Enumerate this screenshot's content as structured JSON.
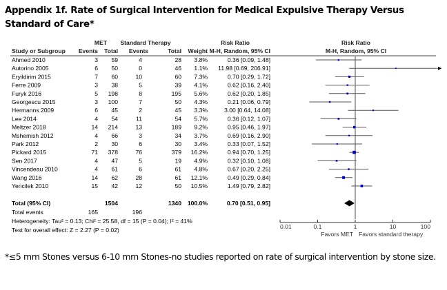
{
  "title": "Appendix 1f. Rate of Surgical Intervention for Medical Expulsive Therapy Versus Standard of Care*",
  "footnote": "*≤5 mm Stones versus 6-10 mm Stones-no studies reported on rate of surgical intervention by stone size.",
  "chart_data": {
    "type": "forest",
    "headers": {
      "group1": "MET",
      "group2": "Standard Therapy",
      "rr_group": "Risk Ratio",
      "study": "Study or Subgroup",
      "events": "Events",
      "total": "Total",
      "weight": "Weight",
      "method": "M-H, Random, 95% CI",
      "plot_title": "Risk Ratio",
      "plot_method": "M-H, Random, 95% CI"
    },
    "studies": [
      {
        "name": "Ahmed 2010",
        "e1": "3",
        "n1": "59",
        "e2": "4",
        "n2": "28",
        "weight": "3.8%",
        "rr_text": "0.36 [0.09, 1.48]",
        "rr": 0.36,
        "lo": 0.09,
        "hi": 1.48
      },
      {
        "name": "Autorino 2005",
        "e1": "6",
        "n1": "50",
        "e2": "0",
        "n2": "46",
        "weight": "1.1%",
        "rr_text": "11.98 [0.69, 206.91]",
        "rr": 11.98,
        "lo": 0.69,
        "hi": 206.91
      },
      {
        "name": "Eryildirim 2015",
        "e1": "7",
        "n1": "60",
        "e2": "10",
        "n2": "60",
        "weight": "7.3%",
        "rr_text": "0.70 [0.29, 1.72]",
        "rr": 0.7,
        "lo": 0.29,
        "hi": 1.72
      },
      {
        "name": "Ferre 2009",
        "e1": "3",
        "n1": "38",
        "e2": "5",
        "n2": "39",
        "weight": "4.1%",
        "rr_text": "0.62 [0.16, 2.40]",
        "rr": 0.62,
        "lo": 0.16,
        "hi": 2.4
      },
      {
        "name": "Furyk 2016",
        "e1": "5",
        "n1": "198",
        "e2": "8",
        "n2": "195",
        "weight": "5.6%",
        "rr_text": "0.62 [0.20, 1.85]",
        "rr": 0.62,
        "lo": 0.2,
        "hi": 1.85
      },
      {
        "name": "Georgescu 2015",
        "e1": "3",
        "n1": "100",
        "e2": "7",
        "n2": "50",
        "weight": "4.3%",
        "rr_text": "0.21 [0.06, 0.79]",
        "rr": 0.21,
        "lo": 0.06,
        "hi": 0.79
      },
      {
        "name": "Hermanns 2009",
        "e1": "6",
        "n1": "45",
        "e2": "2",
        "n2": "45",
        "weight": "3.3%",
        "rr_text": "3.00 [0.64, 14.08]",
        "rr": 3.0,
        "lo": 0.64,
        "hi": 14.08
      },
      {
        "name": "Lee 2014",
        "e1": "4",
        "n1": "54",
        "e2": "11",
        "n2": "54",
        "weight": "5.7%",
        "rr_text": "0.36 [0.12, 1.07]",
        "rr": 0.36,
        "lo": 0.12,
        "hi": 1.07
      },
      {
        "name": "Meltzer 2018",
        "e1": "14",
        "n1": "214",
        "e2": "13",
        "n2": "189",
        "weight": "9.2%",
        "rr_text": "0.95 [0.46, 1.97]",
        "rr": 0.95,
        "lo": 0.46,
        "hi": 1.97
      },
      {
        "name": "Mshemish 2012",
        "e1": "4",
        "n1": "66",
        "e2": "3",
        "n2": "34",
        "weight": "3.7%",
        "rr_text": "0.69 [0.16, 2.90]",
        "rr": 0.69,
        "lo": 0.16,
        "hi": 2.9
      },
      {
        "name": "Park 2012",
        "e1": "2",
        "n1": "30",
        "e2": "6",
        "n2": "30",
        "weight": "3.4%",
        "rr_text": "0.33 [0.07, 1.52]",
        "rr": 0.33,
        "lo": 0.07,
        "hi": 1.52
      },
      {
        "name": "Pickard 2015",
        "e1": "71",
        "n1": "378",
        "e2": "76",
        "n2": "379",
        "weight": "16.2%",
        "rr_text": "0.94 [0.70, 1.25]",
        "rr": 0.94,
        "lo": 0.7,
        "hi": 1.25
      },
      {
        "name": "Sen 2017",
        "e1": "4",
        "n1": "47",
        "e2": "5",
        "n2": "19",
        "weight": "4.9%",
        "rr_text": "0.32 [0.10, 1.08]",
        "rr": 0.32,
        "lo": 0.1,
        "hi": 1.08
      },
      {
        "name": "Vincendeau 2010",
        "e1": "4",
        "n1": "61",
        "e2": "6",
        "n2": "61",
        "weight": "4.8%",
        "rr_text": "0.67 [0.20, 2.25]",
        "rr": 0.67,
        "lo": 0.2,
        "hi": 2.25
      },
      {
        "name": "Wang 2016",
        "e1": "14",
        "n1": "62",
        "e2": "28",
        "n2": "61",
        "weight": "12.1%",
        "rr_text": "0.49 [0.29, 0.84]",
        "rr": 0.49,
        "lo": 0.29,
        "hi": 0.84
      },
      {
        "name": "Yencilek 2010",
        "e1": "15",
        "n1": "42",
        "e2": "12",
        "n2": "50",
        "weight": "10.5%",
        "rr_text": "1.49 [0.79, 2.82]",
        "rr": 1.49,
        "lo": 0.79,
        "hi": 2.82
      }
    ],
    "total": {
      "label": "Total (95% CI)",
      "n1": "1504",
      "n2": "1340",
      "weight": "100.0%",
      "rr_text": "0.70 [0.51, 0.95]",
      "rr": 0.7,
      "lo": 0.51,
      "hi": 0.95
    },
    "total_events": {
      "label": "Total events",
      "e1": "165",
      "e2": "196"
    },
    "heterogeneity": "Heterogeneity: Tau² = 0.13; Chi² = 25.58, df = 15 (P = 0.04); I² = 41%",
    "overall_effect": "Test for overall effect: Z = 2.27 (P = 0.02)",
    "x_axis": {
      "scale": "log",
      "range": [
        0.01,
        100
      ],
      "ticks": [
        0.01,
        0.1,
        1,
        10,
        100
      ],
      "tick_labels": [
        "0.01",
        "0.1",
        "1",
        "10",
        "100"
      ]
    },
    "favors_left": "Favors MET",
    "favors_right": "Favors standard therapy",
    "colors": {
      "point": "#0000cc",
      "ci_line": "#555555",
      "diamond": "#000000"
    }
  }
}
